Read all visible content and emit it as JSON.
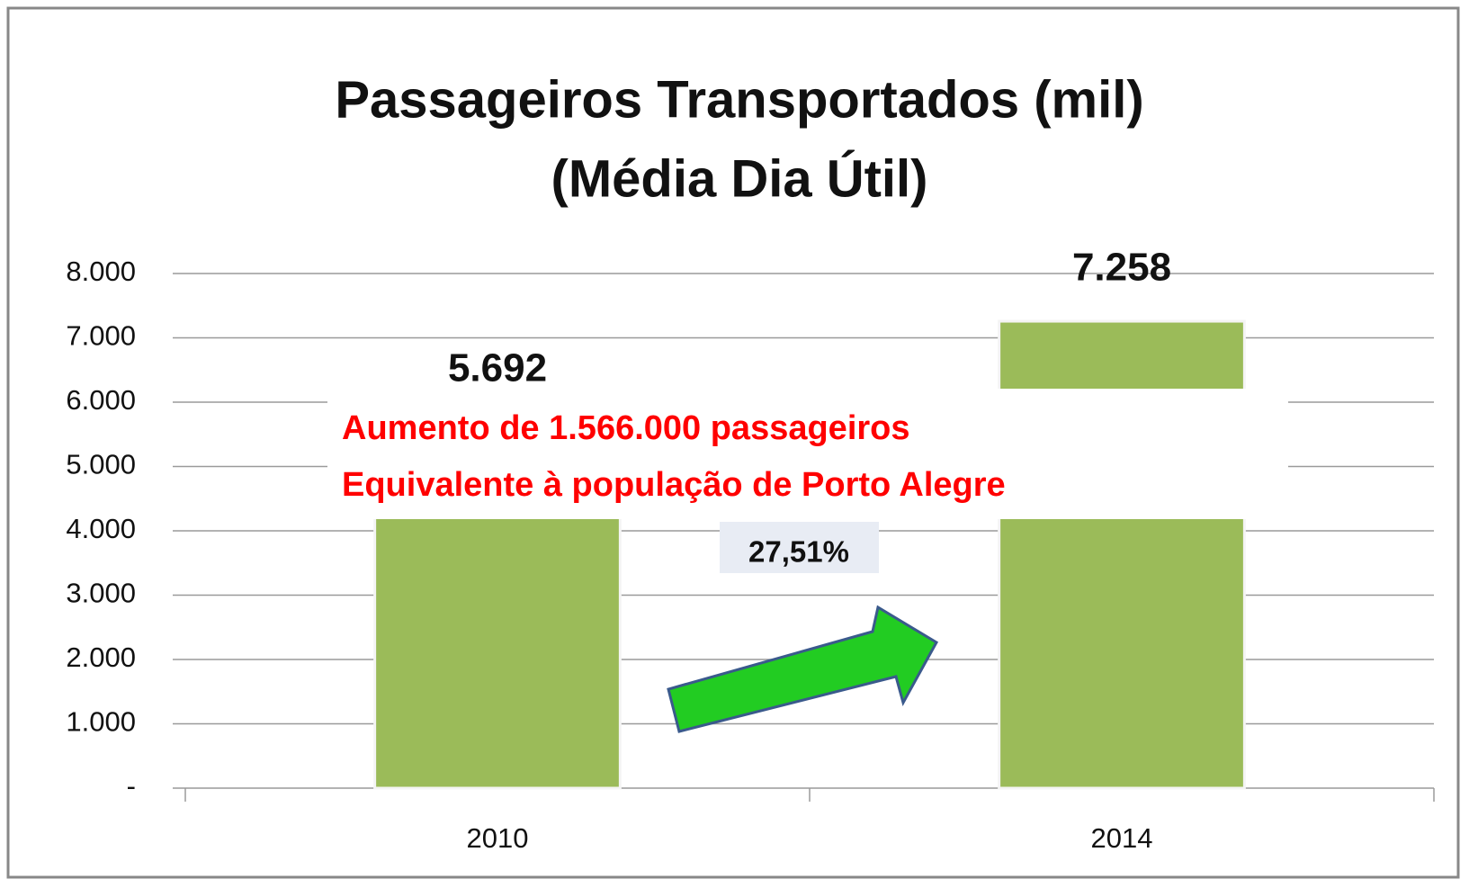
{
  "chart_data": {
    "type": "bar",
    "title": [
      "Passageiros Transportados (mil)",
      "(Média Dia Útil)"
    ],
    "categories": [
      "2010",
      "2014"
    ],
    "values": [
      5692,
      7258
    ],
    "value_labels": [
      "5.692",
      "7.258"
    ],
    "color": "#9bbb59",
    "ylim": [
      0,
      8000
    ],
    "yticks": [
      {
        "value": 0,
        "label": "-"
      },
      {
        "value": 1000,
        "label": "1.000"
      },
      {
        "value": 2000,
        "label": "2.000"
      },
      {
        "value": 3000,
        "label": "3.000"
      },
      {
        "value": 4000,
        "label": "4.000"
      },
      {
        "value": 5000,
        "label": "5.000"
      },
      {
        "value": 6000,
        "label": "6.000"
      },
      {
        "value": 7000,
        "label": "7.000"
      },
      {
        "value": 8000,
        "label": "8.000"
      }
    ],
    "grid": true,
    "annotations": [
      "Aumento de 1.566.000 passageiros",
      "Equivalente à população de Porto Alegre",
      "27,51%"
    ]
  }
}
